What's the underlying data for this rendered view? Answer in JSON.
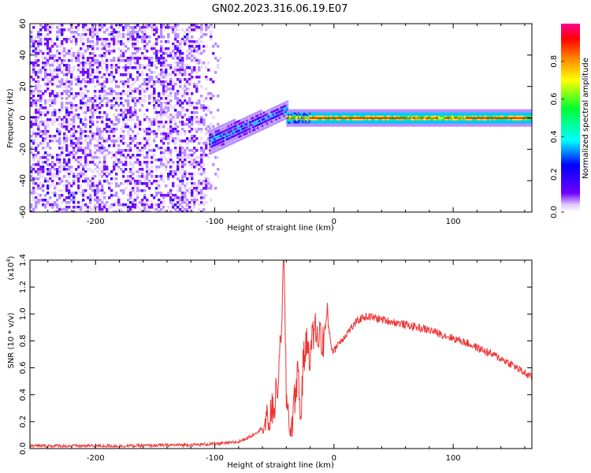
{
  "figure": {
    "title": "GN02.2023.316.06.19.E07"
  },
  "chart_data": [
    {
      "type": "heatmap",
      "title": "GN02.2023.316.06.19.E07",
      "xlabel": "Height of straight line (km)",
      "ylabel": "Frequency (Hz)",
      "xlim": [
        -255,
        166
      ],
      "ylim": [
        -60,
        60
      ],
      "x_ticks": [
        -200,
        -100,
        0,
        100
      ],
      "x_tick_labels": [
        "-200",
        "-100",
        "0",
        "100"
      ],
      "y_ticks": [
        -60,
        -40,
        -20,
        0,
        20,
        40,
        60
      ],
      "y_tick_labels": [
        "-60",
        "-40",
        "-20",
        "0",
        "20",
        "40",
        "60"
      ],
      "grid": false,
      "colormap": "hsv",
      "colorbar": {
        "label": "Normalized spectral amplitude",
        "range": [
          0,
          1
        ],
        "ticks": [
          0.0,
          0.2,
          0.4,
          0.6,
          0.8
        ],
        "tick_labels": [
          "0.0",
          "0.2",
          "0.4",
          "0.6",
          "0.8"
        ],
        "colors": [
          "#ffffff",
          "#c8a0ff",
          "#7000ff",
          "#0000ff",
          "#00ffff",
          "#00ff40",
          "#ffff00",
          "#ff8000",
          "#ff0000",
          "#ff00a0"
        ]
      },
      "regions": [
        {
          "x_range": [
            -255,
            -95
          ],
          "freq_range": [
            -60,
            60
          ],
          "amplitude": 0.15,
          "note": "broadband noise"
        },
        {
          "x_range": [
            -105,
            -40
          ],
          "freq_range": [
            -20,
            12
          ],
          "amplitude": 0.45,
          "note": "rising signal onset"
        },
        {
          "x_range": [
            -40,
            166
          ],
          "freq_range": [
            -3,
            3
          ],
          "amplitude": 0.9,
          "note": "narrow carrier line near 0 Hz"
        }
      ]
    },
    {
      "type": "line",
      "xlabel": "Height of straight line (km)",
      "ylabel": "SNR (10 * v/v)",
      "y_scale_label": "(x10",
      "y_scale_exp": "4",
      "y_scale_close": ")",
      "xlim": [
        -255,
        166
      ],
      "ylim": [
        0,
        1.4
      ],
      "x_ticks": [
        -200,
        -100,
        0,
        100
      ],
      "x_tick_labels": [
        "-200",
        "-100",
        "0",
        "100"
      ],
      "y_ticks": [
        0.0,
        0.2,
        0.4,
        0.6,
        0.8,
        1.0,
        1.2,
        1.4
      ],
      "y_tick_labels": [
        "0.0",
        "0.2",
        "0.4",
        "0.6",
        "0.8",
        "1.0",
        "1.2",
        "1.4"
      ],
      "grid": false,
      "series": [
        {
          "color": "#ee3333",
          "x": [
            -255,
            -230,
            -200,
            -170,
            -140,
            -110,
            -90,
            -80,
            -70,
            -62,
            -55,
            -50,
            -46,
            -44,
            -42,
            -40,
            -38,
            -36,
            -34,
            -32,
            -30,
            -28,
            -26,
            -24,
            -22,
            -20,
            -18,
            -16,
            -14,
            -12,
            -10,
            -8,
            -6,
            -4,
            -2,
            0,
            3,
            6,
            10,
            15,
            20,
            25,
            30,
            35,
            40,
            50,
            60,
            70,
            80,
            90,
            100,
            110,
            120,
            130,
            140,
            150,
            160,
            166
          ],
          "y": [
            0.02,
            0.02,
            0.02,
            0.02,
            0.025,
            0.03,
            0.04,
            0.05,
            0.09,
            0.14,
            0.2,
            0.32,
            0.55,
            0.98,
            1.4,
            0.4,
            0.25,
            0.12,
            0.28,
            0.45,
            0.6,
            0.2,
            0.6,
            0.75,
            0.78,
            0.7,
            0.82,
            0.92,
            0.8,
            0.9,
            0.75,
            0.85,
            0.97,
            0.88,
            0.75,
            0.72,
            0.78,
            0.8,
            0.85,
            0.9,
            0.95,
            0.98,
            0.98,
            0.97,
            0.96,
            0.94,
            0.92,
            0.9,
            0.88,
            0.85,
            0.82,
            0.79,
            0.75,
            0.71,
            0.67,
            0.62,
            0.56,
            0.53
          ]
        }
      ]
    }
  ]
}
